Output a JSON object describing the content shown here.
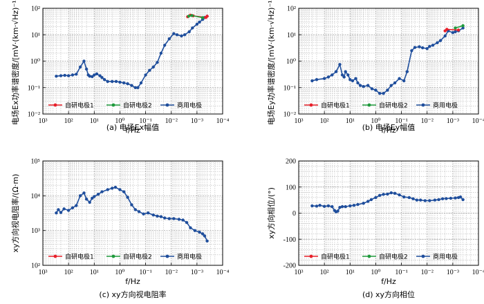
{
  "chart_data": [
    {
      "type": "line",
      "id": "a",
      "caption": "(a) 电场Ex幅值",
      "ylabel": "电场Ex功率谱密度/[mV·(km·√Hz)⁻¹]",
      "xlabel": "f/Hz",
      "xscale": "log",
      "xreversed": true,
      "xlim": [
        1000,
        0.0001
      ],
      "yscale": "log",
      "ylim": [
        0.01,
        100
      ],
      "x_ticks": [
        "10³",
        "10²",
        "10¹",
        "10⁰",
        "10⁻¹",
        "10⁻²",
        "10⁻³",
        "10⁻⁴"
      ],
      "y_ticks": [
        "10⁻²",
        "10⁻¹",
        "10⁰",
        "10¹",
        "10²"
      ],
      "legend": {
        "placement": "bottom-right",
        "entries": [
          "自研电极1",
          "自研电极2",
          "商用电极"
        ]
      },
      "series": [
        {
          "name": "自研电极1",
          "color": "#e8202a",
          "x": [
            0.0023,
            0.0018,
            0.0014,
            0.00045,
            0.0004
          ],
          "y": [
            48,
            55,
            52,
            45,
            50
          ]
        },
        {
          "name": "自研电极2",
          "color": "#1f9a3c",
          "x": [
            0.0021,
            0.0016,
            0.0006
          ],
          "y": [
            50,
            53,
            44
          ]
        },
        {
          "name": "商用电极",
          "color": "#1f4e9c",
          "x": [
            300,
            200,
            140,
            100,
            70,
            50,
            35,
            25,
            20,
            17,
            15,
            12,
            10,
            8,
            6,
            5,
            4,
            3,
            2,
            1.4,
            1,
            0.7,
            0.5,
            0.35,
            0.25,
            0.2,
            0.15,
            0.1,
            0.07,
            0.05,
            0.035,
            0.025,
            0.018,
            0.012,
            0.008,
            0.006,
            0.004,
            0.003,
            0.002,
            0.0015,
            0.001,
            0.0008,
            0.0006,
            0.0005,
            0.0004
          ],
          "y": [
            0.27,
            0.28,
            0.29,
            0.28,
            0.3,
            0.32,
            0.6,
            1.0,
            0.5,
            0.3,
            0.27,
            0.26,
            0.3,
            0.33,
            0.28,
            0.24,
            0.2,
            0.17,
            0.17,
            0.17,
            0.16,
            0.15,
            0.14,
            0.12,
            0.1,
            0.1,
            0.15,
            0.3,
            0.45,
            0.6,
            0.9,
            2.0,
            4.0,
            7.0,
            11,
            10,
            9,
            10,
            13,
            18,
            25,
            30,
            38,
            45,
            50
          ]
        }
      ]
    },
    {
      "type": "line",
      "id": "b",
      "caption": "(b) 电场Ey幅值",
      "ylabel": "电场Ey功率谱密度/[mV·(km·√Hz)⁻¹]",
      "xlabel": "f/Hz",
      "xscale": "log",
      "xreversed": true,
      "xlim": [
        1000,
        0.0001
      ],
      "yscale": "log",
      "ylim": [
        0.01,
        100
      ],
      "x_ticks": [
        "10³",
        "10²",
        "10¹",
        "10⁰",
        "10⁻¹",
        "10⁻²",
        "10⁻³",
        "10⁻⁴"
      ],
      "y_ticks": [
        "10⁻²",
        "10⁻¹",
        "10⁰",
        "10¹",
        "10²"
      ],
      "legend": {
        "placement": "bottom-right",
        "entries": [
          "自研电极1",
          "自研电极2",
          "商用电极"
        ]
      },
      "series": [
        {
          "name": "自研电极1",
          "color": "#e8202a",
          "x": [
            0.002,
            0.0017,
            0.0006
          ],
          "y": [
            14,
            16,
            15
          ]
        },
        {
          "name": "自研电极2",
          "color": "#1f9a3c",
          "x": [
            0.0008,
            0.0004
          ],
          "y": [
            18,
            22
          ]
        },
        {
          "name": "商用电极",
          "color": "#1f4e9c",
          "x": [
            300,
            200,
            100,
            70,
            50,
            35,
            25,
            20,
            17,
            15,
            12,
            10,
            8,
            6,
            5,
            4,
            3,
            2,
            1.4,
            1,
            0.7,
            0.5,
            0.35,
            0.25,
            0.18,
            0.12,
            0.08,
            0.06,
            0.04,
            0.03,
            0.02,
            0.015,
            0.01,
            0.008,
            0.006,
            0.004,
            0.003,
            0.002,
            0.0015,
            0.001,
            0.0008,
            0.0006,
            0.0004
          ],
          "y": [
            0.18,
            0.2,
            0.22,
            0.25,
            0.3,
            0.4,
            0.75,
            0.3,
            0.25,
            0.4,
            0.3,
            0.2,
            0.18,
            0.22,
            0.15,
            0.12,
            0.11,
            0.12,
            0.09,
            0.08,
            0.06,
            0.06,
            0.08,
            0.12,
            0.15,
            0.22,
            0.18,
            0.4,
            2.5,
            3.3,
            3.5,
            3.2,
            3.0,
            3.6,
            4.0,
            5.0,
            6.0,
            9.0,
            14,
            12,
            13,
            14,
            18
          ]
        }
      ]
    },
    {
      "type": "line",
      "id": "c",
      "caption": "(c) xy方向视电阻率",
      "ylabel": "xy方向视电阻率/(Ω·m)",
      "xlabel": "f/Hz",
      "xscale": "log",
      "xreversed": true,
      "xlim": [
        1000,
        0.0001
      ],
      "yscale": "log",
      "ylim": [
        100,
        100000
      ],
      "x_ticks": [
        "10³",
        "10²",
        "10¹",
        "10⁰",
        "10⁻¹",
        "10⁻²",
        "10⁻³",
        "10⁻⁴"
      ],
      "y_ticks": [
        "10²",
        "10³",
        "10⁴",
        "10⁵"
      ],
      "legend": {
        "placement": "bottom-right",
        "entries": [
          "自研电极1",
          "自研电极2",
          "商用电极"
        ]
      },
      "series": [
        {
          "name": "自研电极1",
          "color": "#e8202a",
          "x": [],
          "y": []
        },
        {
          "name": "自研电极2",
          "color": "#1f9a3c",
          "x": [],
          "y": []
        },
        {
          "name": "商用电极",
          "color": "#1f4e9c",
          "x": [
            300,
            250,
            200,
            150,
            100,
            70,
            50,
            35,
            25,
            20,
            15,
            12,
            10,
            7,
            5,
            3,
            2,
            1.5,
            1,
            0.7,
            0.5,
            0.35,
            0.25,
            0.18,
            0.12,
            0.08,
            0.05,
            0.035,
            0.025,
            0.018,
            0.012,
            0.008,
            0.005,
            0.0035,
            0.0025,
            0.0018,
            0.0012,
            0.0008,
            0.0006,
            0.0005,
            0.0004
          ],
          "y": [
            3200,
            4000,
            3300,
            4200,
            3800,
            4500,
            5200,
            10000,
            12000,
            8000,
            6500,
            8500,
            9500,
            11000,
            13000,
            15000,
            16500,
            17500,
            15000,
            13000,
            9000,
            5500,
            4000,
            3500,
            3000,
            3200,
            2800,
            2600,
            2500,
            2300,
            2200,
            2200,
            2100,
            2000,
            1700,
            1200,
            1000,
            900,
            800,
            700,
            500
          ]
        }
      ]
    },
    {
      "type": "line",
      "id": "d",
      "caption": "(d) xy方向相位",
      "ylabel": "xy方向相位/(°)",
      "xlabel": "f/Hz",
      "xscale": "log",
      "xreversed": true,
      "xlim": [
        1000,
        0.0001
      ],
      "yscale": "linear",
      "ylim": [
        -200,
        200
      ],
      "x_ticks": [
        "10³",
        "10²",
        "10¹",
        "10⁰",
        "10⁻¹",
        "10⁻²",
        "10⁻³",
        "10⁻⁴"
      ],
      "y_ticks": [
        "-200",
        "-100",
        "0",
        "100",
        "200"
      ],
      "legend": {
        "placement": "bottom-right",
        "entries": [
          "自研电极1",
          "自研电极2",
          "商用电极"
        ]
      },
      "series": [
        {
          "name": "自研电极1",
          "color": "#e8202a",
          "x": [],
          "y": []
        },
        {
          "name": "自研电极2",
          "color": "#1f9a3c",
          "x": [],
          "y": []
        },
        {
          "name": "商用电极",
          "color": "#1f4e9c",
          "x": [
            300,
            200,
            150,
            100,
            70,
            50,
            40,
            35,
            30,
            25,
            20,
            15,
            10,
            7,
            5,
            3,
            2,
            1.5,
            1,
            0.7,
            0.5,
            0.35,
            0.25,
            0.18,
            0.12,
            0.08,
            0.05,
            0.035,
            0.025,
            0.018,
            0.012,
            0.008,
            0.005,
            0.0035,
            0.0025,
            0.0018,
            0.0012,
            0.0008,
            0.0006,
            0.0005,
            0.0004
          ],
          "y": [
            28,
            27,
            30,
            26,
            28,
            25,
            10,
            5,
            8,
            22,
            25,
            25,
            28,
            30,
            33,
            38,
            45,
            52,
            60,
            68,
            72,
            73,
            78,
            76,
            70,
            62,
            60,
            55,
            50,
            50,
            48,
            48,
            50,
            52,
            55,
            56,
            57,
            58,
            60,
            62,
            52
          ]
        }
      ]
    }
  ]
}
